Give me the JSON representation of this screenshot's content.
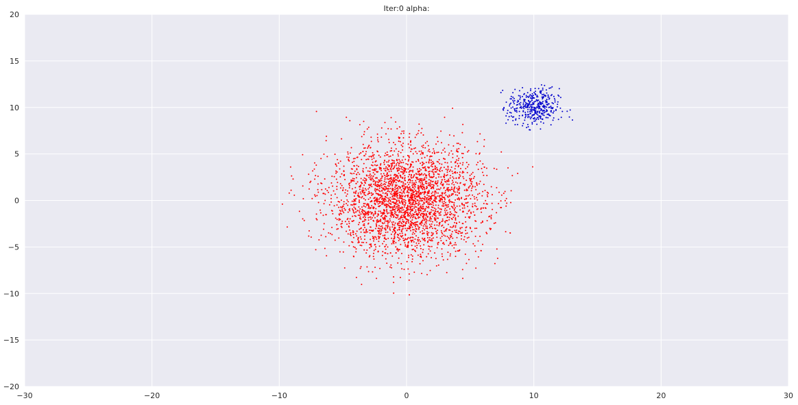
{
  "chart_data": {
    "type": "scatter",
    "title": "Iter:0 alpha:",
    "xlabel": "",
    "ylabel": "",
    "xlim": [
      -30,
      30
    ],
    "ylim": [
      -20,
      20
    ],
    "xticks": [
      -30,
      -20,
      -10,
      0,
      10,
      20,
      30
    ],
    "yticks": [
      -20,
      -15,
      -10,
      -5,
      0,
      5,
      10,
      15,
      20
    ],
    "xtick_labels": [
      "−30",
      "−20",
      "−10",
      "0",
      "10",
      "20",
      "30"
    ],
    "ytick_labels": [
      "−20",
      "−15",
      "−10",
      "−5",
      "0",
      "5",
      "10",
      "15",
      "20"
    ],
    "grid": true,
    "background_color": "#eaeaf2",
    "grid_color": "#ffffff",
    "series": [
      {
        "color": "#ff0000",
        "distribution": "gaussian",
        "center": [
          0,
          0
        ],
        "std": [
          3,
          3
        ],
        "count": 3000,
        "x_range": [
          -11,
          10.5
        ],
        "y_range": [
          -10.2,
          11.4
        ]
      },
      {
        "color": "#0000cc",
        "distribution": "gaussian",
        "center": [
          10,
          10
        ],
        "std": [
          1,
          1
        ],
        "count": 400,
        "x_range": [
          6.8,
          13.3
        ],
        "y_range": [
          6.8,
          13.3
        ]
      }
    ]
  }
}
